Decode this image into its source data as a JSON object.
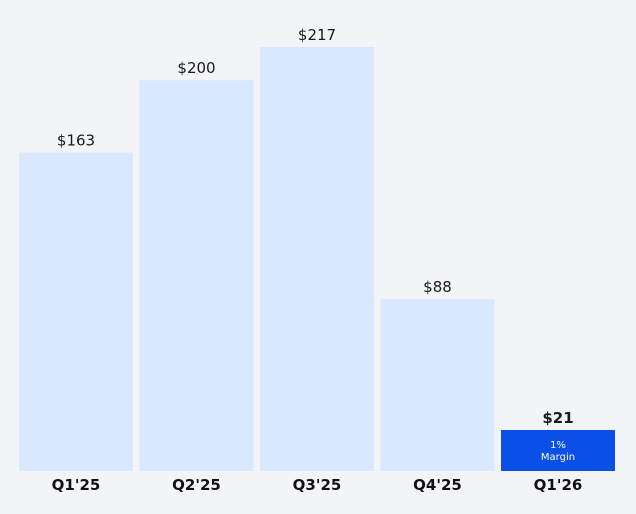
{
  "chart_data": {
    "type": "bar",
    "categories": [
      "Q1'25",
      "Q2'25",
      "Q3'25",
      "Q4'25",
      "Q1'26"
    ],
    "values": [
      163,
      200,
      217,
      88,
      21
    ],
    "value_labels": [
      "$163",
      "$200",
      "$217",
      "$88",
      "$21"
    ],
    "highlight_index": 4,
    "highlight_annotation": [
      "1%",
      "Margin"
    ],
    "title": "",
    "xlabel": "",
    "ylabel": "",
    "ylim": [
      0,
      217
    ],
    "grid": false,
    "legend": "none",
    "colors": {
      "bar": "#d9e8ff",
      "highlight_bar": "#0a4fe6",
      "background": "#f3f4f8",
      "text": "#1a1a1a"
    }
  }
}
